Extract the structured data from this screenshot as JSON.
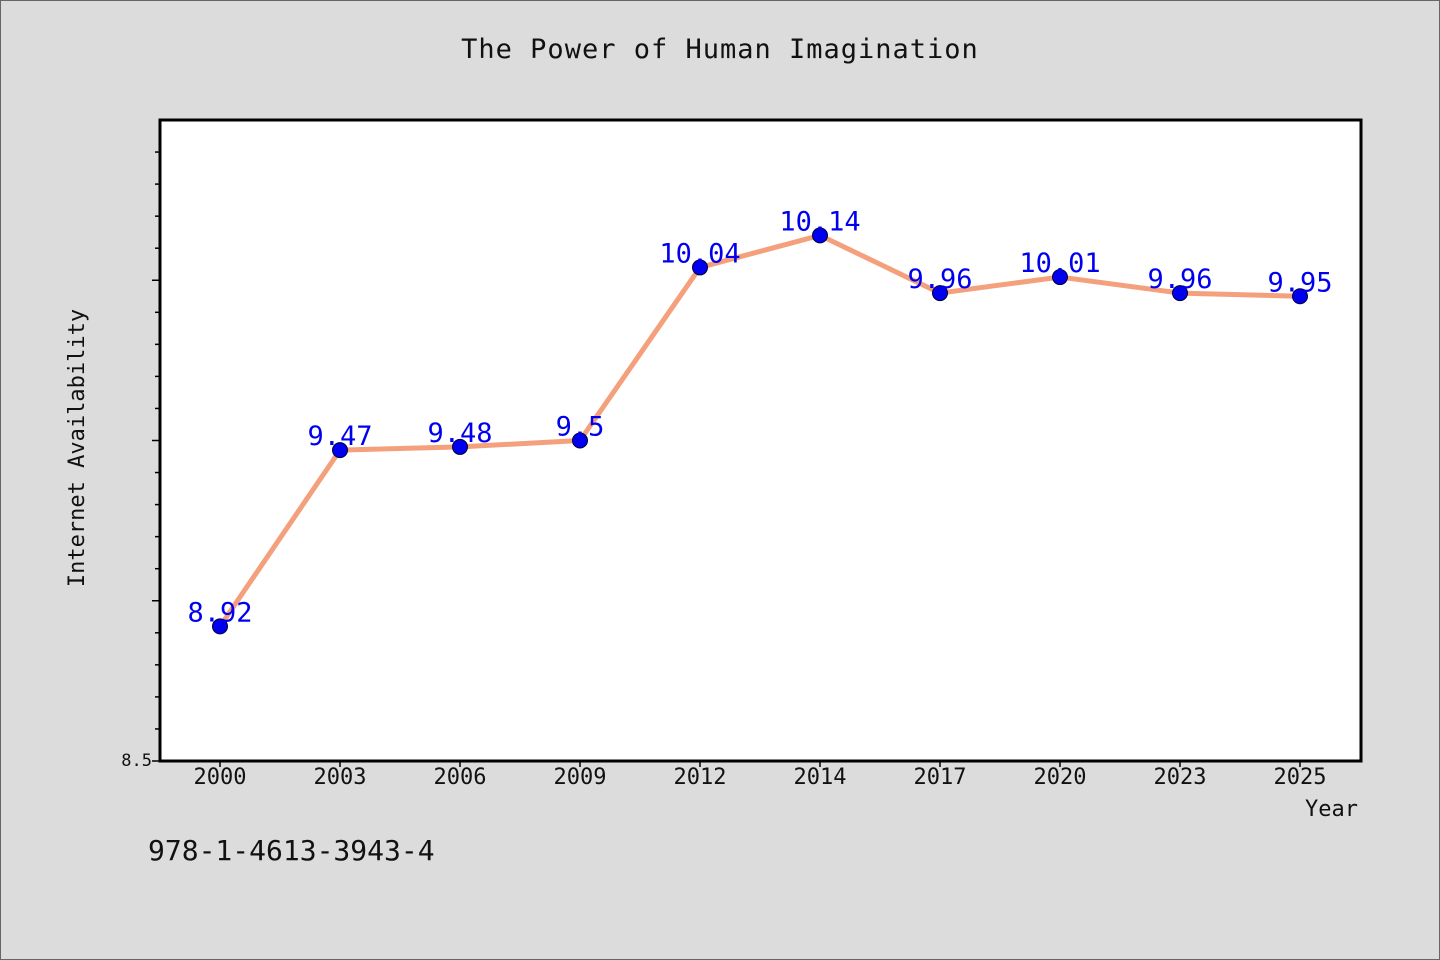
{
  "chart_data": {
    "type": "line",
    "title": "The Power of Human Imagination",
    "xlabel": "Year",
    "ylabel": "Internet Availability",
    "categories": [
      "2000",
      "2003",
      "2006",
      "2009",
      "2012",
      "2014",
      "2017",
      "2020",
      "2023",
      "2025"
    ],
    "series": [
      {
        "values": [
          8.92,
          9.47,
          9.48,
          9.5,
          10.04,
          10.14,
          9.96,
          10.01,
          9.96,
          9.95
        ],
        "labels": [
          "8.92",
          "9.47",
          "9.48",
          "9.5",
          "10.04",
          "10.14",
          "9.96",
          "10.01",
          "9.96",
          "9.95"
        ],
        "line_color": "#f4a07c",
        "marker_color": "#0000ee"
      }
    ],
    "ylim": [
      8.5,
      10.5
    ],
    "y_tick_labels": [
      "8.5"
    ],
    "grid": false,
    "legend": "none",
    "label_color": "#0000ee",
    "plot_background": "#ffffff",
    "figure_background": "#dcdcdc"
  },
  "footer": {
    "code": "978-1-4613-3943-4"
  }
}
